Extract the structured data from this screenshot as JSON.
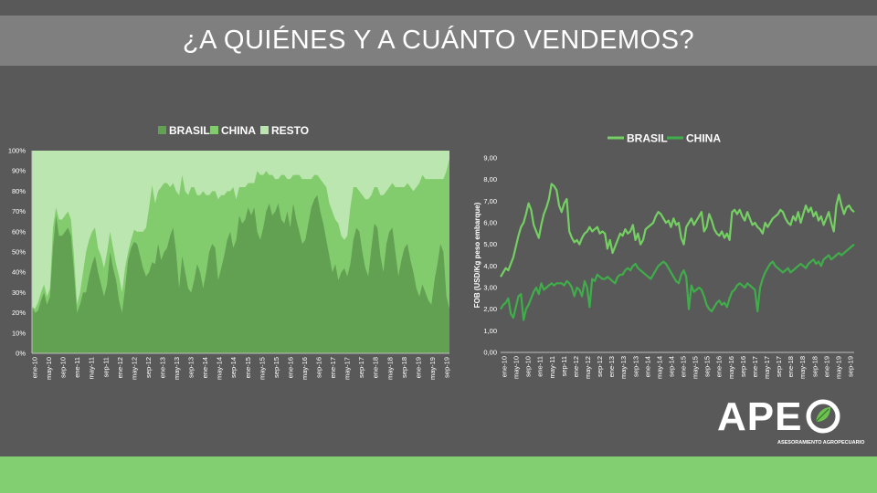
{
  "page": {
    "title": "¿A QUIÉNES Y A CUÁNTO VENDEMOS?"
  },
  "colors": {
    "background": "#595959",
    "title_bar": "#7f7f7f",
    "footer": "#82cf72",
    "brasil_area": "#62a052",
    "china_area": "#82cc6e",
    "resto_area": "#bce6b0",
    "brasil_line": "#74d062",
    "china_line": "#3fae4a"
  },
  "logo": {
    "text": "APE",
    "subtitle": "ASESORAMIENTO AGROPECUARIO",
    "icon": "leaf-circle-icon"
  },
  "chart_data": [
    {
      "type": "area",
      "stacked": "percent",
      "legend": [
        "BRASIL",
        "CHINA",
        "RESTO"
      ],
      "legend_position": "top",
      "ylim": [
        0,
        100
      ],
      "yticks": [
        "0%",
        "10%",
        "20%",
        "30%",
        "40%",
        "50%",
        "60%",
        "70%",
        "80%",
        "90%",
        "100%"
      ],
      "xticks": [
        "ene-10",
        "may-10",
        "sep-10",
        "ene-11",
        "may-11",
        "sep-11",
        "ene-12",
        "may-12",
        "sep-12",
        "ene-13",
        "may-13",
        "sep-13",
        "ene-14",
        "may-14",
        "sep-14",
        "ene-15",
        "may-15",
        "sep-15",
        "ene-16",
        "may-16",
        "sep-16",
        "ene-17",
        "may-17",
        "sep-17",
        "ene-18",
        "may-18",
        "sep-18",
        "ene-19",
        "may-19",
        "sep-19"
      ],
      "x_start": "ene-10",
      "x_end": "dic-19",
      "series": [
        {
          "name": "BRASIL",
          "values": [
            23,
            20,
            21,
            26,
            30,
            24,
            28,
            52,
            68,
            58,
            58,
            60,
            62,
            58,
            40,
            20,
            24,
            30,
            30,
            38,
            44,
            48,
            40,
            34,
            28,
            34,
            50,
            42,
            36,
            26,
            20,
            32,
            46,
            52,
            55,
            54,
            48,
            42,
            38,
            40,
            45,
            44,
            54,
            46,
            50,
            52,
            58,
            62,
            50,
            32,
            48,
            40,
            32,
            30,
            36,
            44,
            40,
            32,
            40,
            50,
            54,
            52,
            36,
            42,
            48,
            56,
            60,
            52,
            56,
            68,
            64,
            66,
            72,
            68,
            72,
            60,
            56,
            62,
            70,
            74,
            68,
            70,
            74,
            66,
            64,
            70,
            62,
            74,
            66,
            60,
            54,
            56,
            64,
            72,
            76,
            78,
            70,
            64,
            56,
            48,
            40,
            44,
            36,
            40,
            42,
            38,
            44,
            56,
            62,
            60,
            50,
            42,
            38,
            52,
            64,
            62,
            48,
            40,
            54,
            60,
            62,
            50,
            38,
            46,
            52,
            54,
            46,
            40,
            32,
            28,
            34,
            30,
            26,
            24,
            36,
            44,
            54,
            50,
            28,
            22
          ],
          "stacked_total_note": ""
        },
        {
          "name": "CHINA",
          "values": [
            0,
            2,
            4,
            4,
            4,
            4,
            4,
            10,
            4,
            8,
            8,
            8,
            8,
            8,
            8,
            4,
            6,
            10,
            20,
            18,
            16,
            14,
            12,
            14,
            14,
            16,
            10,
            10,
            8,
            12,
            10,
            10,
            4,
            4,
            6,
            6,
            12,
            18,
            24,
            32,
            38,
            30,
            26,
            36,
            34,
            32,
            24,
            22,
            30,
            46,
            40,
            40,
            46,
            52,
            46,
            34,
            38,
            48,
            38,
            28,
            26,
            28,
            40,
            36,
            30,
            24,
            20,
            30,
            20,
            14,
            18,
            16,
            12,
            16,
            12,
            30,
            32,
            26,
            20,
            14,
            20,
            16,
            12,
            22,
            24,
            16,
            24,
            14,
            22,
            28,
            32,
            30,
            22,
            14,
            12,
            10,
            16,
            20,
            26,
            26,
            30,
            22,
            28,
            18,
            14,
            20,
            28,
            26,
            20,
            20,
            28,
            34,
            38,
            26,
            18,
            20,
            30,
            38,
            26,
            22,
            22,
            32,
            44,
            36,
            30,
            30,
            36,
            40,
            50,
            56,
            54,
            56,
            60,
            62,
            50,
            42,
            32,
            36,
            62,
            74
          ]
        },
        {
          "name": "RESTO",
          "values_note": "remainder to 100%"
        }
      ]
    },
    {
      "type": "line",
      "legend": [
        "BRASIL",
        "CHINA"
      ],
      "legend_position": "top",
      "ylabel": "FOB (USD/Kg peso embarque)",
      "ylim": [
        0,
        9
      ],
      "yticks": [
        "0,00",
        "1,00",
        "2,00",
        "3,00",
        "4,00",
        "5,00",
        "6,00",
        "7,00",
        "8,00",
        "9,00"
      ],
      "xticks": [
        "ene-10",
        "may-10",
        "sep-10",
        "ene-11",
        "may-11",
        "sep-11",
        "ene-12",
        "may-12",
        "sep-12",
        "ene-13",
        "may-13",
        "sep-13",
        "ene-14",
        "may-14",
        "sep-14",
        "ene-15",
        "may-15",
        "sep-15",
        "ene-16",
        "may-16",
        "sep-16",
        "ene-17",
        "may-17",
        "sep-17",
        "ene-18",
        "may-18",
        "sep-18",
        "ene-19",
        "may-19",
        "sep-19"
      ],
      "x_start": "ene-10",
      "x_end": "dic-19",
      "series": [
        {
          "name": "BRASIL",
          "values": [
            3.5,
            3.7,
            3.9,
            3.8,
            4.1,
            4.4,
            4.9,
            5.4,
            5.8,
            6.0,
            6.4,
            6.9,
            6.6,
            5.9,
            5.6,
            5.3,
            5.9,
            6.4,
            6.7,
            7.1,
            7.8,
            7.7,
            7.5,
            6.8,
            6.5,
            6.9,
            7.1,
            5.6,
            5.3,
            5.1,
            5.2,
            5.0,
            5.3,
            5.5,
            5.6,
            5.8,
            5.6,
            5.7,
            5.8,
            5.5,
            5.6,
            5.5,
            4.8,
            5.2,
            4.6,
            4.9,
            5.2,
            5.5,
            5.4,
            5.7,
            5.5,
            5.6,
            5.9,
            5.2,
            5.5,
            5.0,
            5.2,
            5.7,
            5.8,
            5.9,
            6.0,
            6.3,
            6.5,
            6.4,
            6.2,
            6.0,
            6.1,
            5.8,
            6.2,
            5.9,
            6.0,
            5.3,
            5.0,
            5.8,
            6.0,
            6.2,
            5.9,
            6.1,
            6.3,
            6.5,
            5.6,
            5.8,
            6.4,
            6.1,
            5.7,
            5.5,
            5.4,
            5.6,
            5.3,
            5.5,
            5.2,
            6.5,
            6.6,
            6.4,
            6.6,
            6.3,
            6.1,
            6.5,
            6.2,
            5.9,
            6.0,
            5.8,
            5.7,
            5.5,
            6.0,
            5.8,
            6.0,
            6.2,
            6.3,
            6.4,
            6.6,
            6.5,
            6.2,
            6.0,
            5.9,
            6.3,
            6.1,
            6.5,
            6.0,
            6.4,
            6.8,
            6.5,
            6.7,
            6.3,
            6.5,
            6.1,
            6.3,
            5.9,
            6.2,
            6.5,
            6.0,
            5.6,
            6.8,
            7.3,
            6.8,
            6.4,
            6.7,
            6.8,
            6.6,
            6.5
          ]
        },
        {
          "name": "CHINA",
          "values": [
            2.0,
            2.2,
            2.3,
            2.5,
            1.8,
            1.6,
            2.1,
            2.6,
            2.7,
            1.5,
            2.0,
            2.2,
            2.5,
            2.8,
            3.0,
            2.7,
            3.2,
            2.9,
            3.0,
            3.1,
            3.2,
            3.1,
            3.2,
            3.2,
            3.2,
            3.1,
            3.3,
            3.2,
            3.0,
            2.6,
            3.0,
            2.9,
            2.6,
            3.3,
            3.0,
            2.1,
            3.4,
            3.3,
            3.6,
            3.5,
            3.4,
            3.4,
            3.5,
            3.4,
            3.3,
            3.2,
            3.5,
            3.6,
            3.6,
            3.8,
            3.9,
            3.8,
            4.0,
            4.1,
            3.9,
            3.8,
            3.7,
            3.6,
            3.5,
            3.4,
            3.6,
            3.8,
            4.0,
            4.1,
            4.2,
            4.1,
            3.9,
            3.7,
            3.5,
            3.3,
            3.2,
            3.6,
            3.8,
            3.5,
            2.0,
            3.1,
            2.8,
            2.9,
            3.0,
            2.9,
            2.6,
            2.2,
            2.0,
            1.9,
            2.1,
            2.3,
            2.4,
            2.2,
            2.3,
            2.1,
            2.5,
            2.8,
            2.9,
            3.1,
            3.2,
            3.1,
            3.0,
            3.2,
            3.1,
            3.0,
            2.9,
            1.9,
            3.0,
            3.4,
            3.7,
            3.9,
            4.1,
            4.2,
            4.0,
            3.9,
            3.8,
            3.7,
            3.8,
            3.9,
            3.7,
            3.8,
            3.9,
            4.0,
            4.1,
            4.0,
            3.9,
            4.1,
            4.2,
            4.3,
            4.1,
            4.2,
            4.0,
            4.3,
            4.4,
            4.5,
            4.3,
            4.4,
            4.5,
            4.6,
            4.5,
            4.6,
            4.7,
            4.8,
            4.9,
            5.0
          ]
        }
      ]
    }
  ]
}
